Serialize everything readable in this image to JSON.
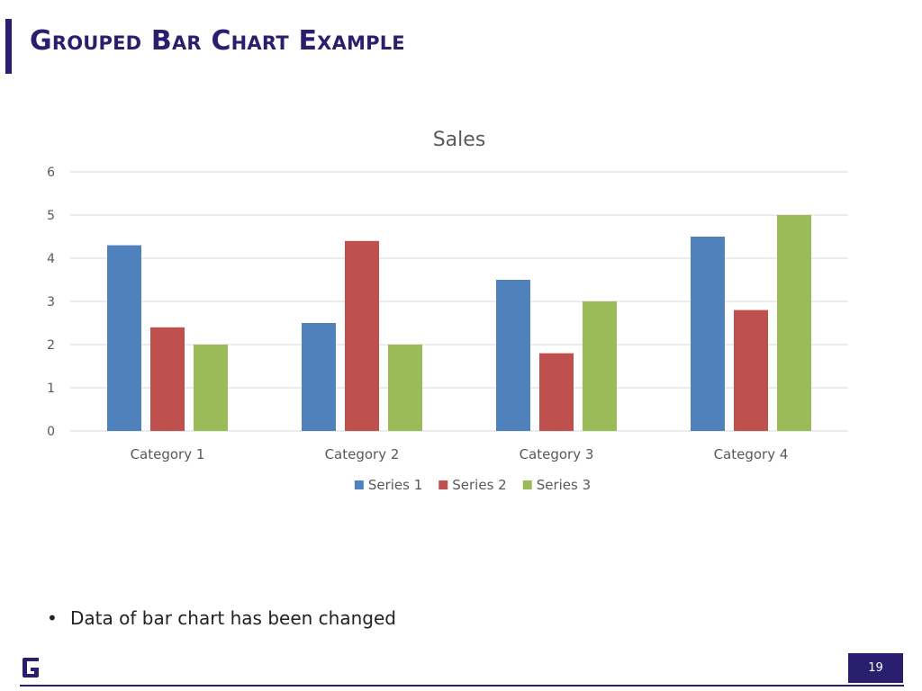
{
  "slide": {
    "title": "Grouped Bar Chart Example",
    "bullets": [
      "Data of bar chart has been changed"
    ],
    "page_number": "19",
    "bullet_glyph": "•"
  },
  "colors": {
    "accent": "#2a1f6e",
    "series": [
      "#4f81bd",
      "#c0504d",
      "#9bbb59"
    ],
    "gridline": "#d9d9d9",
    "axis_text": "#595959"
  },
  "icons": {
    "logo": "brand-g-logo"
  },
  "chart_data": {
    "type": "bar",
    "title": "Sales",
    "categories": [
      "Category 1",
      "Category 2",
      "Category 3",
      "Category 4"
    ],
    "series": [
      {
        "name": "Series 1",
        "values": [
          4.3,
          2.5,
          3.5,
          4.5
        ]
      },
      {
        "name": "Series 2",
        "values": [
          2.4,
          4.4,
          1.8,
          2.8
        ]
      },
      {
        "name": "Series 3",
        "values": [
          2.0,
          2.0,
          3.0,
          5.0
        ]
      }
    ],
    "ylim": [
      0,
      6
    ],
    "yticks": [
      0,
      1,
      2,
      3,
      4,
      5,
      6
    ],
    "grid": true,
    "legend": "bottom"
  }
}
